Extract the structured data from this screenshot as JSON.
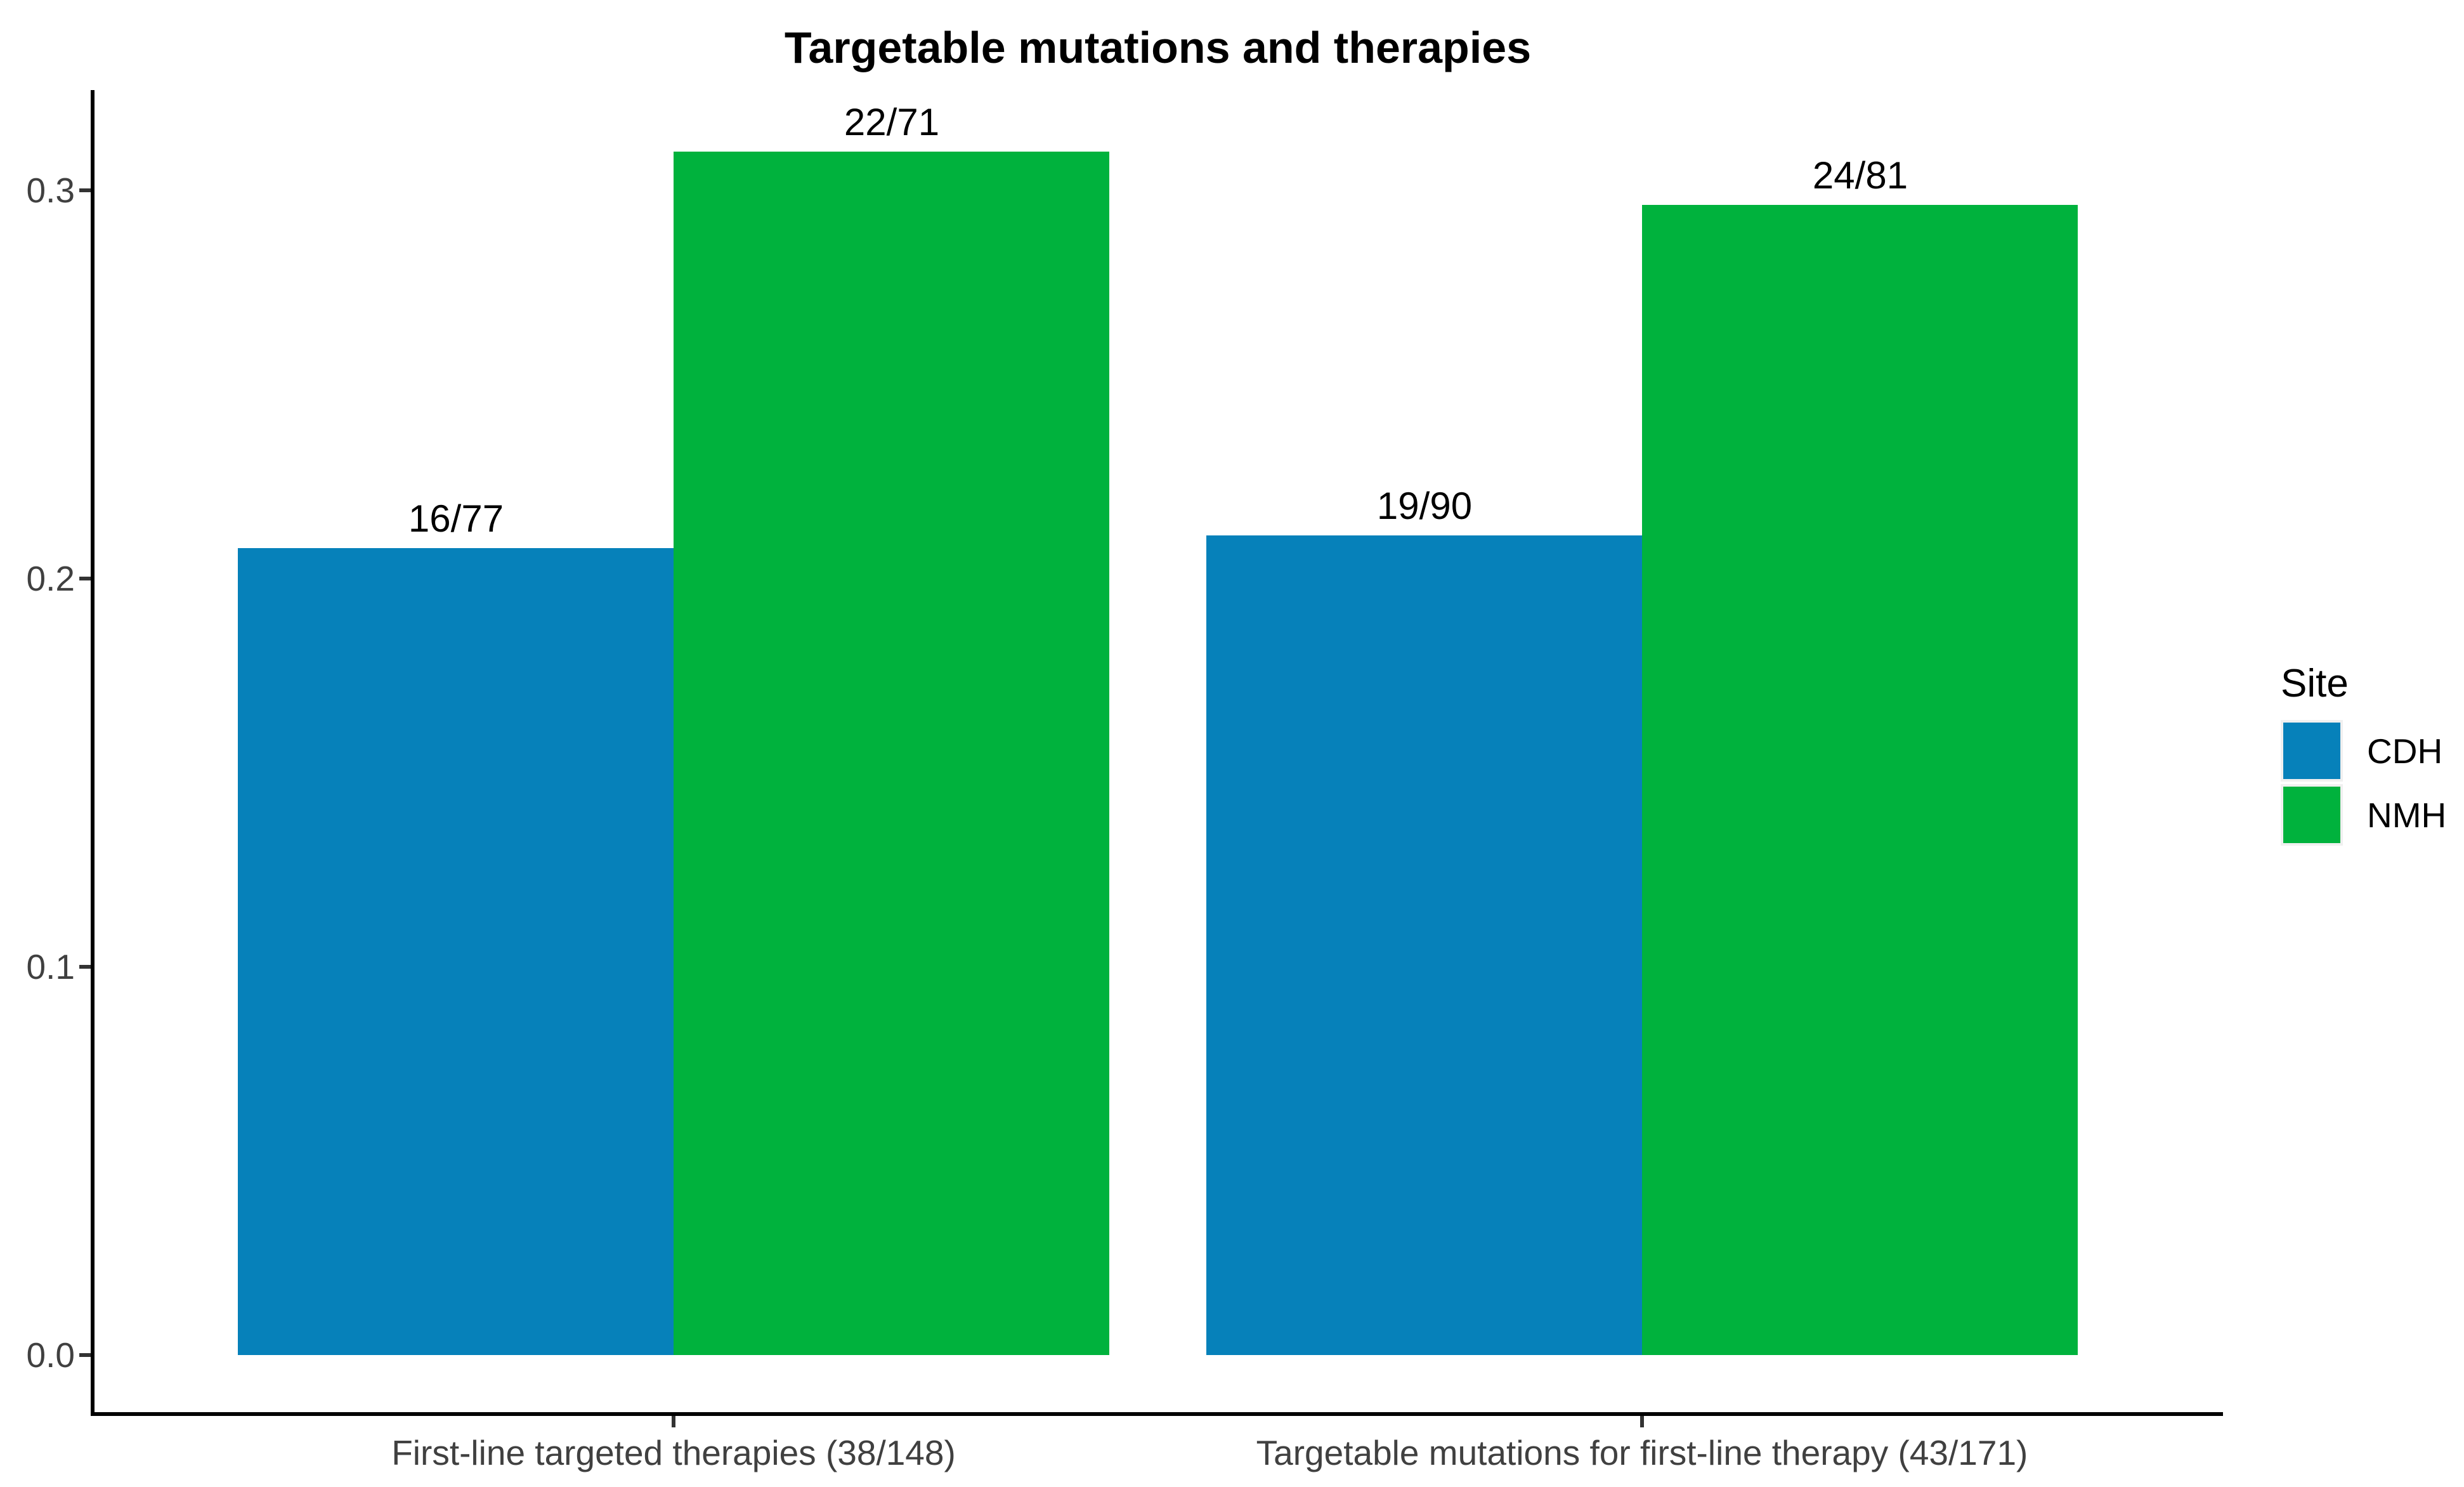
{
  "title": "Targetable mutations and therapies",
  "legend": {
    "title": "Site",
    "items": [
      {
        "label": "CDH",
        "color": "#0681ba"
      },
      {
        "label": "NMH",
        "color": "#00b23d"
      }
    ]
  },
  "chart_data": {
    "type": "bar",
    "title": "Targetable mutations and therapies",
    "legend_title": "Site",
    "legend_position": "right",
    "grid": false,
    "xlabel": "",
    "ylabel": "",
    "categories": [
      "First-line targeted therapies (38/148)",
      "Targetable mutations for first-line therapy (43/171)"
    ],
    "series": [
      {
        "name": "CDH",
        "color": "#0681ba",
        "values": [
          0.2078,
          0.2111
        ],
        "labels": [
          "16/77",
          "19/90"
        ]
      },
      {
        "name": "NMH",
        "color": "#00b23d",
        "values": [
          0.3099,
          0.2963
        ],
        "labels": [
          "22/71",
          "24/81"
        ]
      }
    ],
    "yticks": [
      {
        "value": 0.0,
        "label": "0.0"
      },
      {
        "value": 0.1,
        "label": "0.1"
      },
      {
        "value": 0.2,
        "label": "0.2"
      },
      {
        "value": 0.3,
        "label": "0.3"
      }
    ],
    "ylim": [
      -0.016,
      0.326
    ]
  }
}
